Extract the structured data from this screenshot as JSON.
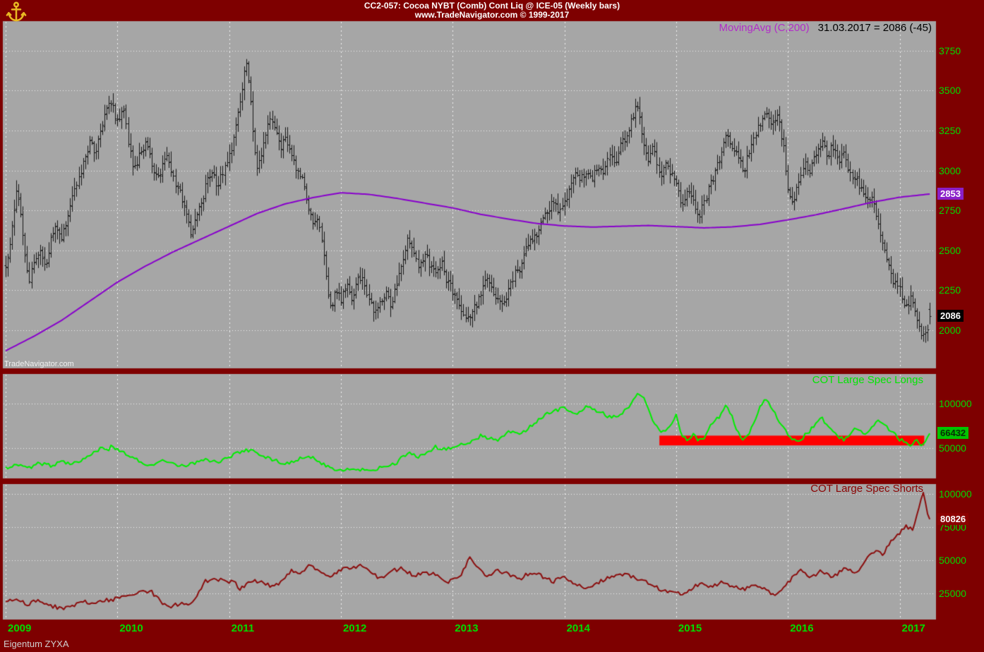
{
  "titlebar": {
    "line1": "CC2-057:  Cocoa NYBT (Comb) Cont Liq @ ICE-05  (Weekly bars)",
    "line2": "www.TradeNavigator.com © 1999-2017"
  },
  "legend": {
    "ma_label": "MovingAvg (C,200)",
    "ma_value": "31.03.2017 = 2086 (-45)"
  },
  "watermark": "TradeNavigator.com",
  "footer": "Eigentum ZYXA",
  "icons": {
    "logo": "anchor-icon"
  },
  "colors": {
    "frame": "#7E0000",
    "panel_bg": "#A6A6A6",
    "grid": "#FFFFFF",
    "price_bar": "#151515",
    "ma_line": "#8800CC",
    "longs_line": "#00EE00",
    "shorts_line": "#8B0E0E",
    "band": "#FF0000",
    "axis_text": "#00DC00"
  },
  "x_axis": {
    "years": [
      "2009",
      "2010",
      "2011",
      "2012",
      "2013",
      "2014",
      "2015",
      "2016",
      "2017"
    ]
  },
  "chart_data": [
    {
      "type": "bar",
      "style": "weekly-ohlc",
      "title": "CC2-057: Cocoa NYBT (Comb) Cont Liq @ ICE-05 (Weekly bars)",
      "x_range": [
        2009.0,
        2017.3
      ],
      "ylim": [
        1760,
        3935
      ],
      "yticks": [
        2000,
        2250,
        2500,
        2750,
        3000,
        3250,
        3500,
        3750
      ],
      "grid": true,
      "legend_position": "top-right",
      "last_close": 2086,
      "last_close_label": "2086",
      "close_keyframes": {
        "t": [
          2009.0,
          2009.05,
          2009.1,
          2009.15,
          2009.2,
          2009.25,
          2009.3,
          2009.35,
          2009.4,
          2009.45,
          2009.5,
          2009.55,
          2009.6,
          2009.65,
          2009.7,
          2009.75,
          2009.8,
          2009.85,
          2009.9,
          2009.95,
          2010.0,
          2010.05,
          2010.1,
          2010.15,
          2010.2,
          2010.25,
          2010.3,
          2010.35,
          2010.4,
          2010.45,
          2010.5,
          2010.55,
          2010.6,
          2010.65,
          2010.7,
          2010.75,
          2010.8,
          2010.85,
          2010.9,
          2010.95,
          2011.0,
          2011.05,
          2011.1,
          2011.15,
          2011.2,
          2011.25,
          2011.3,
          2011.35,
          2011.4,
          2011.45,
          2011.5,
          2011.55,
          2011.6,
          2011.65,
          2011.7,
          2011.75,
          2011.8,
          2011.85,
          2011.9,
          2011.95,
          2012.0,
          2012.05,
          2012.1,
          2012.15,
          2012.2,
          2012.25,
          2012.3,
          2012.35,
          2012.4,
          2012.45,
          2012.5,
          2012.55,
          2012.6,
          2012.65,
          2012.7,
          2012.75,
          2012.8,
          2012.85,
          2012.9,
          2012.95,
          2013.0,
          2013.05,
          2013.1,
          2013.15,
          2013.2,
          2013.25,
          2013.3,
          2013.35,
          2013.4,
          2013.45,
          2013.5,
          2013.55,
          2013.6,
          2013.65,
          2013.7,
          2013.75,
          2013.8,
          2013.85,
          2013.9,
          2013.95,
          2014.0,
          2014.05,
          2014.1,
          2014.15,
          2014.2,
          2014.25,
          2014.3,
          2014.35,
          2014.4,
          2014.45,
          2014.5,
          2014.55,
          2014.6,
          2014.65,
          2014.7,
          2014.75,
          2014.8,
          2014.85,
          2014.9,
          2014.95,
          2015.0,
          2015.05,
          2015.1,
          2015.15,
          2015.2,
          2015.25,
          2015.3,
          2015.35,
          2015.4,
          2015.45,
          2015.5,
          2015.55,
          2015.6,
          2015.65,
          2015.7,
          2015.75,
          2015.8,
          2015.85,
          2015.9,
          2015.95,
          2016.0,
          2016.05,
          2016.1,
          2016.15,
          2016.2,
          2016.25,
          2016.3,
          2016.35,
          2016.4,
          2016.45,
          2016.5,
          2016.55,
          2016.6,
          2016.65,
          2016.7,
          2016.75,
          2016.8,
          2016.85,
          2016.9,
          2016.95,
          2017.0,
          2017.05,
          2017.1,
          2017.15,
          2017.2,
          2017.25,
          2017.28
        ],
        "v": [
          2420,
          2580,
          2900,
          2620,
          2300,
          2420,
          2500,
          2400,
          2550,
          2650,
          2560,
          2700,
          2850,
          2950,
          3050,
          3180,
          3100,
          3250,
          3400,
          3430,
          3300,
          3420,
          3150,
          3000,
          3100,
          3180,
          3050,
          2950,
          3020,
          3080,
          2950,
          2880,
          2750,
          2620,
          2680,
          2800,
          2920,
          3000,
          2900,
          3020,
          3080,
          3250,
          3450,
          3720,
          3350,
          3000,
          3150,
          3330,
          3280,
          3150,
          3200,
          3100,
          3000,
          2950,
          2820,
          2650,
          2700,
          2450,
          2120,
          2250,
          2200,
          2300,
          2200,
          2350,
          2300,
          2200,
          2100,
          2180,
          2250,
          2150,
          2300,
          2450,
          2580,
          2480,
          2400,
          2480,
          2400,
          2350,
          2450,
          2300,
          2250,
          2150,
          2080,
          2100,
          2150,
          2220,
          2320,
          2250,
          2180,
          2150,
          2250,
          2350,
          2400,
          2500,
          2550,
          2600,
          2700,
          2750,
          2800,
          2750,
          2800,
          2900,
          2980,
          2950,
          3000,
          2960,
          3050,
          3000,
          3100,
          3050,
          3150,
          3220,
          3320,
          3400,
          3200,
          3050,
          3150,
          2950,
          3050,
          2980,
          2900,
          2760,
          2850,
          2800,
          2700,
          2800,
          2900,
          3000,
          3100,
          3230,
          3150,
          3100,
          2990,
          3100,
          3200,
          3300,
          3390,
          3300,
          3350,
          3200,
          2900,
          2800,
          2950,
          3050,
          3000,
          3100,
          3190,
          3100,
          3150,
          3050,
          3100,
          3000,
          2950,
          2900,
          2800,
          2850,
          2700,
          2550,
          2400,
          2300,
          2250,
          2150,
          2200,
          2050,
          1940,
          1990,
          2086
        ]
      },
      "ma": {
        "name": "MovingAvg (C,200)",
        "last_value": 2853,
        "last_value_label": "2853",
        "t": [
          2009.0,
          2009.25,
          2009.5,
          2009.75,
          2010.0,
          2010.25,
          2010.5,
          2010.75,
          2011.0,
          2011.25,
          2011.5,
          2011.75,
          2012.0,
          2012.25,
          2012.5,
          2012.75,
          2013.0,
          2013.25,
          2013.5,
          2013.75,
          2014.0,
          2014.25,
          2014.5,
          2014.75,
          2015.0,
          2015.25,
          2015.5,
          2015.75,
          2016.0,
          2016.25,
          2016.5,
          2016.75,
          2017.0,
          2017.28
        ],
        "v": [
          1870,
          1960,
          2060,
          2180,
          2300,
          2400,
          2490,
          2570,
          2650,
          2730,
          2790,
          2830,
          2860,
          2850,
          2825,
          2795,
          2765,
          2725,
          2695,
          2668,
          2652,
          2645,
          2650,
          2655,
          2648,
          2640,
          2646,
          2662,
          2690,
          2722,
          2760,
          2800,
          2832,
          2853
        ]
      }
    },
    {
      "type": "line",
      "title": "COT Large Spec Longs",
      "x_range": [
        2009.0,
        2017.3
      ],
      "ylim": [
        15900,
        133300
      ],
      "yticks": [
        50000,
        100000
      ],
      "grid": true,
      "last_value": 66432,
      "last_value_label": "66432",
      "band": {
        "x_start": 2014.85,
        "x_end": 2017.22,
        "v_top": 64000,
        "v_bottom": 53000,
        "color": "#FF0000"
      },
      "keyframes": {
        "t": [
          2009.0,
          2009.1,
          2009.2,
          2009.3,
          2009.4,
          2009.5,
          2009.6,
          2009.7,
          2009.8,
          2009.85,
          2009.9,
          2009.95,
          2010.0,
          2010.1,
          2010.2,
          2010.3,
          2010.4,
          2010.5,
          2010.6,
          2010.7,
          2010.8,
          2010.9,
          2011.0,
          2011.1,
          2011.2,
          2011.3,
          2011.4,
          2011.5,
          2011.6,
          2011.7,
          2011.8,
          2011.9,
          2012.0,
          2012.1,
          2012.2,
          2012.3,
          2012.4,
          2012.5,
          2012.55,
          2012.6,
          2012.65,
          2012.7,
          2012.8,
          2012.85,
          2012.9,
          2013.0,
          2013.1,
          2013.2,
          2013.25,
          2013.3,
          2013.4,
          2013.5,
          2013.6,
          2013.7,
          2013.8,
          2013.9,
          2014.0,
          2014.05,
          2014.1,
          2014.2,
          2014.3,
          2014.4,
          2014.5,
          2014.6,
          2014.65,
          2014.7,
          2014.75,
          2014.8,
          2014.85,
          2014.9,
          2014.95,
          2015.0,
          2015.05,
          2015.1,
          2015.15,
          2015.2,
          2015.25,
          2015.3,
          2015.35,
          2015.4,
          2015.45,
          2015.5,
          2015.55,
          2015.6,
          2015.65,
          2015.7,
          2015.75,
          2015.8,
          2015.85,
          2015.9,
          2015.95,
          2016.0,
          2016.05,
          2016.1,
          2016.15,
          2016.2,
          2016.25,
          2016.3,
          2016.35,
          2016.4,
          2016.45,
          2016.5,
          2016.55,
          2016.6,
          2016.65,
          2016.7,
          2016.75,
          2016.8,
          2016.85,
          2016.9,
          2016.95,
          2017.0,
          2017.05,
          2017.1,
          2017.15,
          2017.2,
          2017.25,
          2017.28
        ],
        "v": [
          28000,
          32000,
          27000,
          33000,
          30000,
          35000,
          33000,
          38000,
          45000,
          50000,
          46000,
          52000,
          48000,
          42000,
          35000,
          30000,
          35000,
          32000,
          30000,
          34000,
          37000,
          34000,
          40000,
          46000,
          48000,
          42000,
          36000,
          33000,
          36000,
          42000,
          35000,
          28000,
          26000,
          27000,
          25000,
          26000,
          30000,
          32000,
          40000,
          45000,
          42000,
          40000,
          46000,
          52000,
          48000,
          50000,
          55000,
          58000,
          65000,
          62000,
          58000,
          70000,
          65000,
          75000,
          85000,
          92000,
          95000,
          90000,
          88000,
          96000,
          92000,
          85000,
          88000,
          100000,
          112000,
          108000,
          95000,
          78000,
          70000,
          68000,
          75000,
          88000,
          65000,
          58000,
          66000,
          58000,
          62000,
          75000,
          80000,
          88000,
          100000,
          85000,
          68000,
          58000,
          65000,
          80000,
          95000,
          108000,
          95000,
          85000,
          75000,
          65000,
          60000,
          58000,
          64000,
          70000,
          78000,
          85000,
          75000,
          68000,
          62000,
          60000,
          66000,
          72000,
          68000,
          64000,
          72000,
          80000,
          76000,
          72000,
          66000,
          60000,
          56000,
          52000,
          58000,
          50000,
          62000,
          66432
        ]
      }
    },
    {
      "type": "line",
      "title": "COT Large Spec Shorts",
      "x_range": [
        2009.0,
        2017.3
      ],
      "ylim": [
        5300,
        107400
      ],
      "yticks": [
        25000,
        50000,
        75000,
        100000
      ],
      "grid": true,
      "last_value": 80826,
      "last_value_label": "80826",
      "keyframes": {
        "t": [
          2009.0,
          2009.1,
          2009.2,
          2009.3,
          2009.4,
          2009.5,
          2009.6,
          2009.7,
          2009.8,
          2009.9,
          2010.0,
          2010.1,
          2010.2,
          2010.3,
          2010.4,
          2010.45,
          2010.55,
          2010.65,
          2010.72,
          2010.78,
          2010.85,
          2010.95,
          2011.05,
          2011.1,
          2011.2,
          2011.3,
          2011.4,
          2011.5,
          2011.55,
          2011.65,
          2011.72,
          2011.8,
          2011.9,
          2012.0,
          2012.1,
          2012.2,
          2012.28,
          2012.35,
          2012.45,
          2012.55,
          2012.65,
          2012.75,
          2012.85,
          2012.92,
          2013.0,
          2013.08,
          2013.15,
          2013.22,
          2013.3,
          2013.4,
          2013.5,
          2013.6,
          2013.7,
          2013.8,
          2013.9,
          2014.0,
          2014.1,
          2014.2,
          2014.3,
          2014.4,
          2014.5,
          2014.6,
          2014.7,
          2014.8,
          2014.9,
          2015.0,
          2015.08,
          2015.15,
          2015.22,
          2015.3,
          2015.4,
          2015.5,
          2015.6,
          2015.7,
          2015.8,
          2015.88,
          2015.95,
          2016.05,
          2016.12,
          2016.2,
          2016.3,
          2016.4,
          2016.5,
          2016.6,
          2016.7,
          2016.78,
          2016.85,
          2016.92,
          2017.0,
          2017.06,
          2017.12,
          2017.17,
          2017.21,
          2017.25,
          2017.28
        ],
        "v": [
          18000,
          21000,
          17000,
          20000,
          16000,
          13500,
          16000,
          19000,
          17000,
          20000,
          21000,
          24000,
          26000,
          26500,
          18000,
          15000,
          17000,
          16000,
          24000,
          34000,
          36000,
          35000,
          33000,
          28000,
          35000,
          33000,
          30000,
          36000,
          42000,
          40000,
          47000,
          42000,
          38000,
          43000,
          45000,
          46000,
          40000,
          36000,
          42000,
          44000,
          38000,
          41000,
          39000,
          33000,
          35000,
          40000,
          52000,
          45000,
          38000,
          43000,
          39000,
          36000,
          41000,
          38000,
          34000,
          37000,
          32000,
          29000,
          33000,
          37000,
          40000,
          38000,
          35000,
          30000,
          27000,
          26000,
          24000,
          29000,
          33000,
          29000,
          33000,
          30000,
          28000,
          31000,
          28000,
          24000,
          27000,
          38000,
          43000,
          36000,
          42000,
          37000,
          44000,
          40000,
          50000,
          58000,
          53000,
          65000,
          70000,
          76000,
          72000,
          88000,
          103000,
          85000,
          80826
        ]
      }
    }
  ]
}
